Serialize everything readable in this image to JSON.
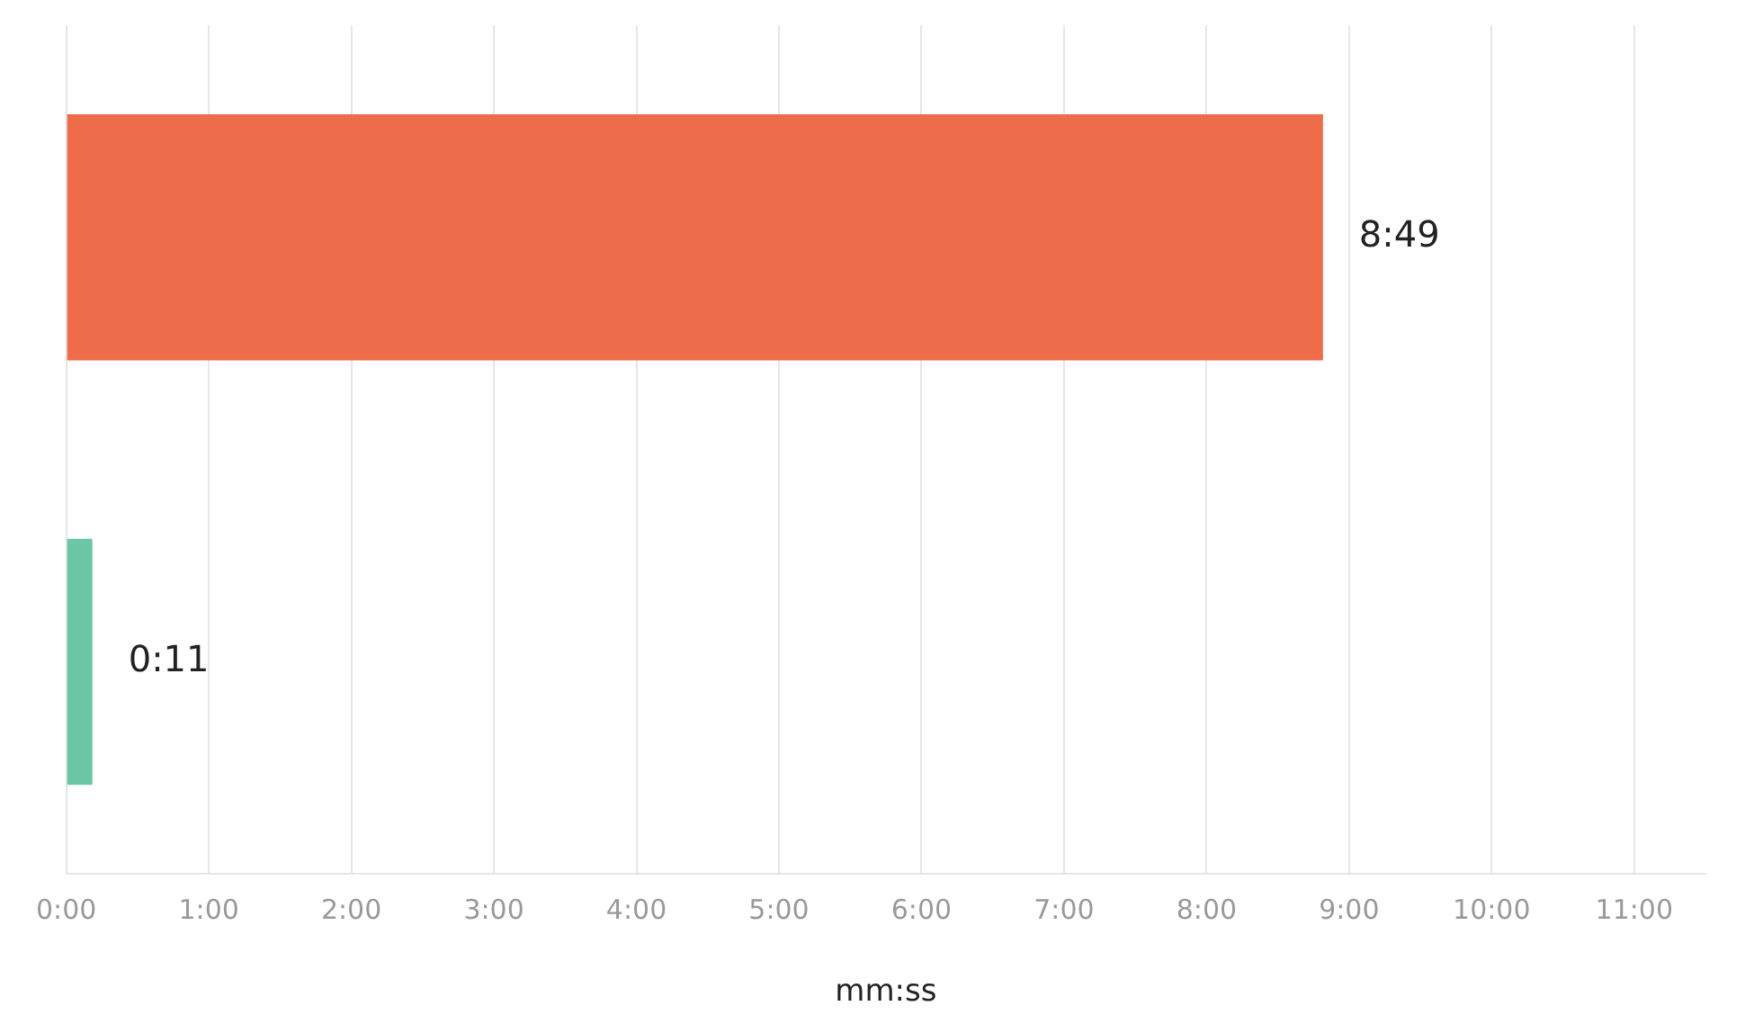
{
  "chart_data": {
    "type": "bar",
    "orientation": "horizontal",
    "categories": [
      null,
      null
    ],
    "values": [
      8.817,
      0.183
    ],
    "colors": [
      "#ee6c4a",
      "#6cc6a6"
    ],
    "value_labels": [
      "8:49",
      "0:11"
    ],
    "xlabel": "mm:ss",
    "xlim": [
      0,
      11.5
    ],
    "xticks": [
      {
        "value": 0,
        "label": "0:00"
      },
      {
        "value": 1,
        "label": "1:00"
      },
      {
        "value": 2,
        "label": "2:00"
      },
      {
        "value": 3,
        "label": "3:00"
      },
      {
        "value": 4,
        "label": "4:00"
      },
      {
        "value": 5,
        "label": "5:00"
      },
      {
        "value": 6,
        "label": "6:00"
      },
      {
        "value": 7,
        "label": "7:00"
      },
      {
        "value": 8,
        "label": "8:00"
      },
      {
        "value": 9,
        "label": "9:00"
      },
      {
        "value": 10,
        "label": "10:00"
      },
      {
        "value": 11,
        "label": "11:00"
      }
    ],
    "grid": "x",
    "legend": false
  }
}
